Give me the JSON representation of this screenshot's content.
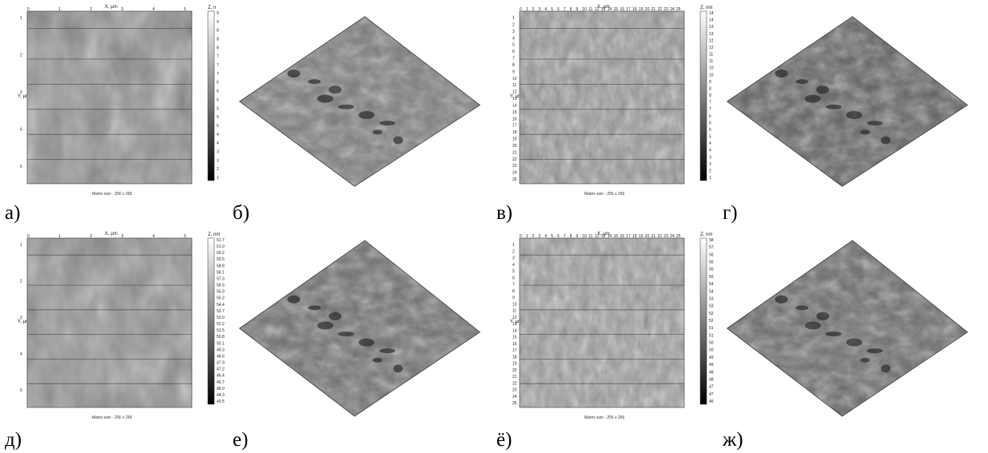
{
  "panels": [
    {
      "id": "a",
      "label": "а)",
      "kind": "afm-2d",
      "x_axis_title": "X, μm",
      "y_axis_title": "Y, μm",
      "z_axis_title": "Z, n",
      "x_ticks": [
        "0",
        "1",
        "2",
        "3",
        "4",
        "5"
      ],
      "y_ticks": [
        "1",
        "2",
        "3",
        "4",
        "5"
      ],
      "colorbar_ticks": [
        "9",
        "9",
        "8",
        "8",
        "8",
        "7",
        "7",
        "7",
        "6",
        "6",
        "6",
        "5",
        "5",
        "5",
        "4",
        "4",
        "3",
        "3",
        "2",
        "1"
      ],
      "matrix_text": "Matrix size - 256 x 256",
      "tone": "#8c8c8c"
    },
    {
      "id": "b",
      "label": "б)",
      "kind": "afm-3d",
      "tone": "#7a7a7a"
    },
    {
      "id": "v",
      "label": "в)",
      "kind": "afm-2d",
      "x_axis_title": "X, μm",
      "y_axis_title": "Y, μm",
      "z_axis_title": "Z, nm",
      "x_ticks": [
        "0",
        "1",
        "2",
        "3",
        "4",
        "5",
        "6",
        "7",
        "8",
        "9",
        "10",
        "11",
        "12",
        "13",
        "14",
        "15",
        "16",
        "17",
        "18",
        "19",
        "20",
        "21",
        "22",
        "23",
        "24",
        "25"
      ],
      "y_ticks": [
        "1",
        "2",
        "3",
        "4",
        "5",
        "6",
        "7",
        "8",
        "9",
        "10",
        "11",
        "12",
        "13",
        "14",
        "15",
        "16",
        "17",
        "18",
        "19",
        "20",
        "21",
        "22",
        "23",
        "24",
        "25"
      ],
      "colorbar_ticks": [
        "14",
        "14",
        "13",
        "13",
        "12",
        "12",
        "11",
        "11",
        "10",
        "10",
        "9",
        "8",
        "8",
        "7",
        "7",
        "6",
        "6",
        "5",
        "5",
        "4",
        "4",
        "3",
        "3",
        "2",
        "1"
      ],
      "matrix_text": "Matrix size - 256 x 256",
      "tone": "#9a9a9a"
    },
    {
      "id": "g",
      "label": "г)",
      "kind": "afm-3d",
      "tone": "#5e5e5e"
    },
    {
      "id": "d",
      "label": "д)",
      "kind": "afm-2d",
      "x_axis_title": "X, μm",
      "y_axis_title": "Y, μm",
      "z_axis_title": "Z, nm",
      "x_ticks": [
        "0",
        "1",
        "2",
        "3",
        "4",
        "5"
      ],
      "y_ticks": [
        "1",
        "2",
        "3",
        "4",
        "5"
      ],
      "colorbar_ticks": [
        "61.7",
        "61.0",
        "60.2",
        "59.5",
        "58.8",
        "58.1",
        "57.3",
        "56.6",
        "55.9",
        "55.2",
        "54.4",
        "53.7",
        "53.0",
        "52.2",
        "51.5",
        "50.8",
        "50.1",
        "49.3",
        "48.6",
        "47.9",
        "47.2",
        "46.4",
        "45.7",
        "45.0",
        "44.3",
        "43.5"
      ],
      "matrix_text": "Matrix size - 256 x 256",
      "tone": "#8f8f8f"
    },
    {
      "id": "e",
      "label": "е)",
      "kind": "afm-3d",
      "tone": "#6d6d6d"
    },
    {
      "id": "yo",
      "label": "ё)",
      "kind": "afm-2d",
      "x_axis_title": "X, μm",
      "y_axis_title": "Y, μm",
      "z_axis_title": "Z, nm",
      "x_ticks": [
        "0",
        "1",
        "2",
        "3",
        "4",
        "5",
        "6",
        "7",
        "8",
        "9",
        "10",
        "11",
        "12",
        "13",
        "14",
        "15",
        "16",
        "17",
        "18",
        "19",
        "20",
        "21",
        "22",
        "23",
        "24",
        "25"
      ],
      "y_ticks": [
        "1",
        "2",
        "3",
        "4",
        "5",
        "6",
        "7",
        "8",
        "9",
        "10",
        "11",
        "12",
        "13",
        "14",
        "15",
        "16",
        "17",
        "18",
        "19",
        "20",
        "21",
        "22",
        "23",
        "24",
        "25"
      ],
      "colorbar_ticks": [
        "58",
        "57",
        "56",
        "56",
        "55",
        "55",
        "54",
        "54",
        "53",
        "53",
        "52",
        "52",
        "51",
        "51",
        "50",
        "50",
        "49",
        "49",
        "48",
        "48",
        "47",
        "47",
        "46"
      ],
      "matrix_text": "Matrix size - 256 x 256",
      "tone": "#a0a0a0"
    },
    {
      "id": "zh",
      "label": "ж)",
      "kind": "afm-3d",
      "tone": "#686868"
    }
  ]
}
